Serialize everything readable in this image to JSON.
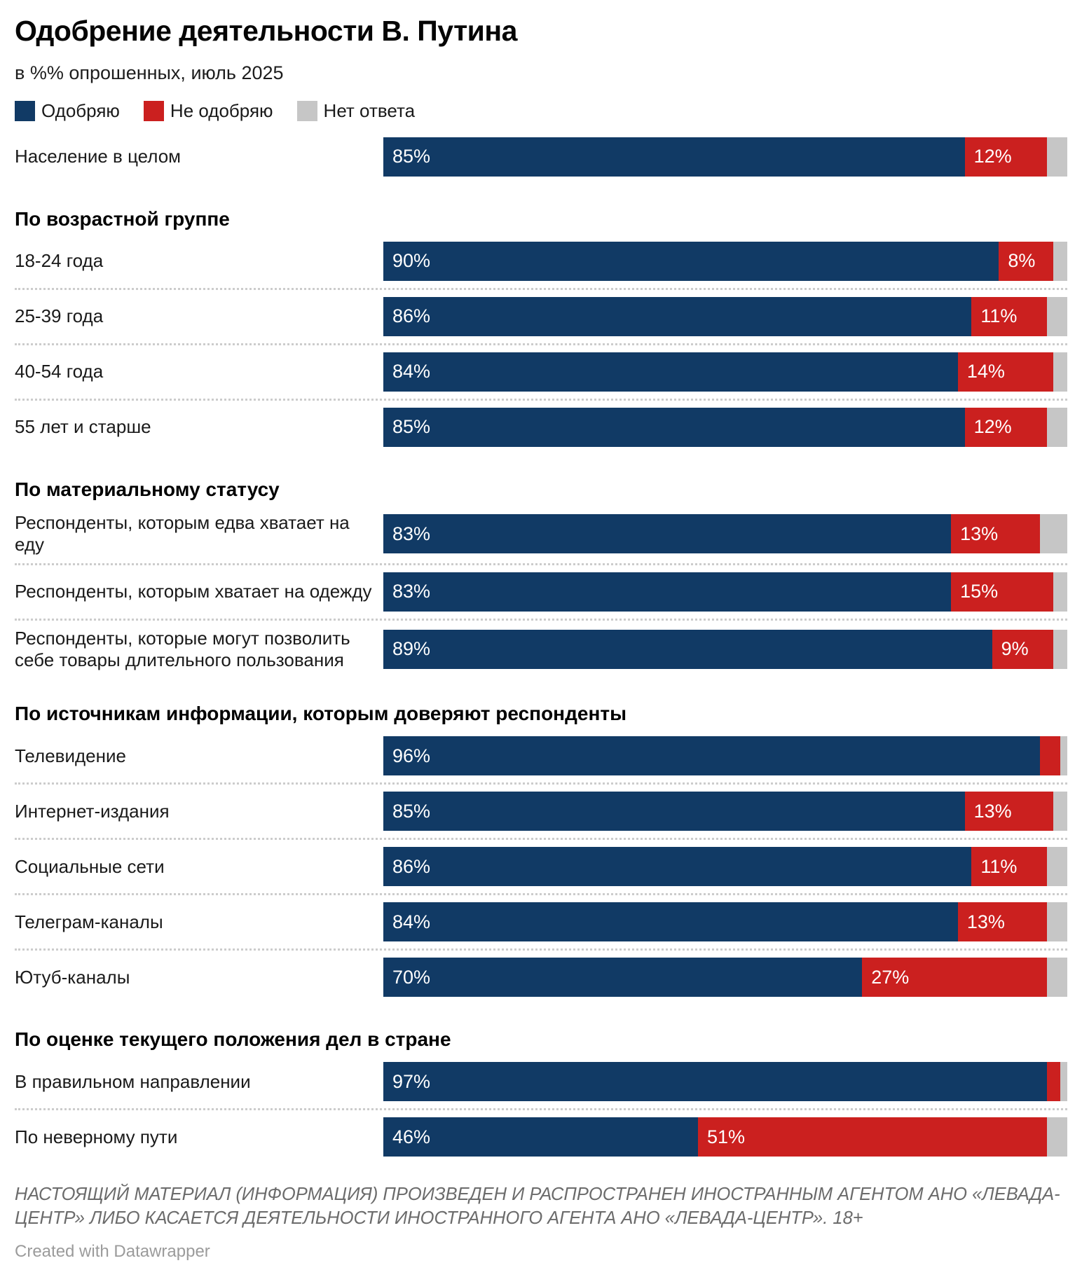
{
  "title": "Одобрение деятельности В. Путина",
  "subtitle": "в %% опрошенных, июль 2025",
  "colors": {
    "approve": "#113a65",
    "disapprove": "#cb201f",
    "no_answer": "#c6c6c6"
  },
  "legend": [
    {
      "label": "Одобряю",
      "color_key": "approve"
    },
    {
      "label": "Не одобряю",
      "color_key": "disapprove"
    },
    {
      "label": "Нет ответа",
      "color_key": "no_answer"
    }
  ],
  "chart_data": {
    "type": "bar",
    "stacked": true,
    "orientation": "horizontal",
    "unit": "%",
    "x_range": [
      0,
      100
    ],
    "series_names": [
      "Одобряю",
      "Не одобряю",
      "Нет ответа"
    ],
    "groups": [
      {
        "header": "",
        "rows": [
          {
            "label": "Население в целом",
            "approve": 85,
            "disapprove": 12,
            "no_answer": 3,
            "approve_label": "85%",
            "disapprove_label": "12%"
          }
        ]
      },
      {
        "header": "По возрастной группе",
        "rows": [
          {
            "label": "18-24 года",
            "approve": 90,
            "disapprove": 8,
            "no_answer": 2,
            "approve_label": "90%",
            "disapprove_label": "8%"
          },
          {
            "label": "25-39 года",
            "approve": 86,
            "disapprove": 11,
            "no_answer": 3,
            "approve_label": "86%",
            "disapprove_label": "11%"
          },
          {
            "label": "40-54 года",
            "approve": 84,
            "disapprove": 14,
            "no_answer": 2,
            "approve_label": "84%",
            "disapprove_label": "14%"
          },
          {
            "label": "55 лет и старше",
            "approve": 85,
            "disapprove": 12,
            "no_answer": 3,
            "approve_label": "85%",
            "disapprove_label": "12%"
          }
        ]
      },
      {
        "header": "По материальному статусу",
        "rows": [
          {
            "label": "Респонденты, которым едва хватает на еду",
            "approve": 83,
            "disapprove": 13,
            "no_answer": 4,
            "approve_label": "83%",
            "disapprove_label": "13%"
          },
          {
            "label": "Респонденты, которым хватает на одежду",
            "approve": 83,
            "disapprove": 15,
            "no_answer": 2,
            "approve_label": "83%",
            "disapprove_label": "15%"
          },
          {
            "label": "Респонденты, которые могут позволить себе товары длительного пользования",
            "approve": 89,
            "disapprove": 9,
            "no_answer": 2,
            "approve_label": "89%",
            "disapprove_label": "9%"
          }
        ]
      },
      {
        "header": "По источникам информации, которым доверяют респонденты",
        "rows": [
          {
            "label": "Телевидение",
            "approve": 96,
            "disapprove": 3,
            "no_answer": 1,
            "approve_label": "96%",
            "disapprove_label": ""
          },
          {
            "label": "Интернет-издания",
            "approve": 85,
            "disapprove": 13,
            "no_answer": 2,
            "approve_label": "85%",
            "disapprove_label": "13%"
          },
          {
            "label": "Социальные сети",
            "approve": 86,
            "disapprove": 11,
            "no_answer": 3,
            "approve_label": "86%",
            "disapprove_label": "11%"
          },
          {
            "label": "Телеграм-каналы",
            "approve": 84,
            "disapprove": 13,
            "no_answer": 3,
            "approve_label": "84%",
            "disapprove_label": "13%"
          },
          {
            "label": "Ютуб-каналы",
            "approve": 70,
            "disapprove": 27,
            "no_answer": 3,
            "approve_label": "70%",
            "disapprove_label": "27%"
          }
        ]
      },
      {
        "header": "По оценке текущего положения дел в стране",
        "rows": [
          {
            "label": "В правильном направлении",
            "approve": 97,
            "disapprove": 2,
            "no_answer": 1,
            "approve_label": "97%",
            "disapprove_label": ""
          },
          {
            "label": "По неверному пути",
            "approve": 46,
            "disapprove": 51,
            "no_answer": 3,
            "approve_label": "46%",
            "disapprove_label": "51%"
          }
        ]
      }
    ]
  },
  "footer": {
    "disclaimer_line1": "НАСТОЯЩИЙ МАТЕРИАЛ (ИНФОРМАЦИЯ) ПРОИЗВЕДЕН И РАСПРОСТРАНЕН ИНОСТРАННЫМ АГЕНТОМ АНО «ЛЕВАДА-",
    "disclaimer_line2": "ЦЕНТР» ЛИБО КАСАЕТСЯ ДЕЯТЕЛЬНОСТИ ИНОСТРАННОГО АГЕНТА АНО «ЛЕВАДА-ЦЕНТР». 18+",
    "credit": "Created with Datawrapper"
  }
}
